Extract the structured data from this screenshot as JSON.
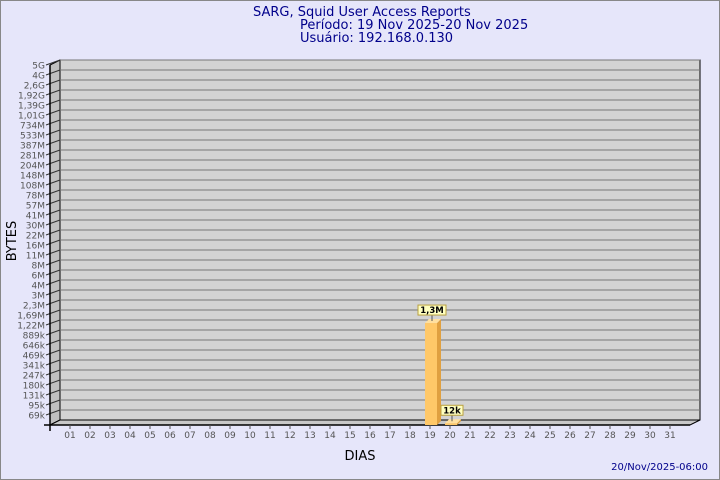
{
  "header": {
    "title": "SARG, Squid User Access Reports",
    "period": "Período: 19 Nov 2025-20 Nov 2025",
    "user": "Usuário: 192.168.0.130"
  },
  "footer": {
    "timestamp": "20/Nov/2025-06:00"
  },
  "colors": {
    "background": "#e6e6fa",
    "plot": "#d3d3d3",
    "title": "#00008b",
    "bar": "#ffc868",
    "bar_side": "#e0a040",
    "label_box": "#ffffc0"
  },
  "chart_data": {
    "type": "bar",
    "title": "SARG, Squid User Access Reports",
    "xlabel": "DIAS",
    "ylabel": "BYTES",
    "y_scale": "log",
    "grid": true,
    "y_ticks": [
      "69k",
      "95k",
      "131k",
      "180k",
      "247k",
      "341k",
      "469k",
      "646k",
      "889k",
      "1,22M",
      "1,69M",
      "2,3M",
      "3M",
      "4M",
      "6M",
      "8M",
      "11M",
      "16M",
      "22M",
      "30M",
      "41M",
      "57M",
      "78M",
      "108M",
      "148M",
      "204M",
      "281M",
      "387M",
      "533M",
      "734M",
      "1,01G",
      "1,39G",
      "1,92G",
      "2,6G",
      "4G",
      "5G"
    ],
    "y_tick_values": [
      69000,
      95000,
      131000,
      180000,
      247000,
      341000,
      469000,
      646000,
      889000,
      1220000,
      1690000,
      2300000,
      3000000,
      4000000,
      6000000,
      8000000,
      11000000,
      16000000,
      22000000,
      30000000,
      41000000,
      57000000,
      78000000,
      108000000,
      148000000,
      204000000,
      281000000,
      387000000,
      533000000,
      734000000,
      1010000000,
      1390000000,
      1920000000,
      2600000000,
      4000000000,
      5000000000
    ],
    "categories": [
      "01",
      "02",
      "03",
      "04",
      "05",
      "06",
      "07",
      "08",
      "09",
      "10",
      "11",
      "12",
      "13",
      "14",
      "15",
      "16",
      "17",
      "18",
      "19",
      "20",
      "21",
      "22",
      "23",
      "24",
      "25",
      "26",
      "27",
      "28",
      "29",
      "30",
      "31"
    ],
    "bars": [
      {
        "day": "19",
        "value": 1300000,
        "label": "1,3M"
      },
      {
        "day": "20",
        "value": 12000,
        "label": "12k"
      }
    ]
  }
}
